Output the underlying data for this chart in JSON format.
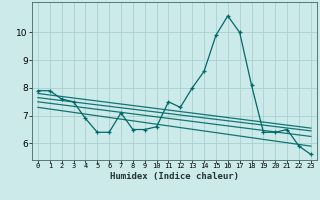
{
  "xlabel": "Humidex (Indice chaleur)",
  "background_color": "#cdeaea",
  "grid_color": "#aad0d0",
  "line_color": "#006868",
  "x_values": [
    0,
    1,
    2,
    3,
    4,
    5,
    6,
    7,
    8,
    9,
    10,
    11,
    12,
    13,
    14,
    15,
    16,
    17,
    18,
    19,
    20,
    21,
    22,
    23
  ],
  "y_main": [
    7.9,
    7.9,
    7.6,
    7.5,
    6.9,
    6.4,
    6.4,
    7.1,
    6.5,
    6.5,
    6.6,
    7.5,
    7.3,
    8.0,
    8.6,
    9.9,
    10.6,
    10.0,
    8.1,
    6.4,
    6.4,
    6.5,
    5.9,
    5.6
  ],
  "regression_lines": [
    [
      [
        0,
        23
      ],
      [
        7.8,
        6.55
      ]
    ],
    [
      [
        0,
        23
      ],
      [
        7.65,
        6.45
      ]
    ],
    [
      [
        0,
        23
      ],
      [
        7.5,
        6.25
      ]
    ],
    [
      [
        0,
        23
      ],
      [
        7.3,
        5.9
      ]
    ]
  ],
  "ylim": [
    5.4,
    11.1
  ],
  "xlim": [
    -0.5,
    23.5
  ],
  "yticks": [
    6,
    7,
    8,
    9,
    10
  ],
  "xticks": [
    0,
    1,
    2,
    3,
    4,
    5,
    6,
    7,
    8,
    9,
    10,
    11,
    12,
    13,
    14,
    15,
    16,
    17,
    18,
    19,
    20,
    21,
    22,
    23
  ]
}
